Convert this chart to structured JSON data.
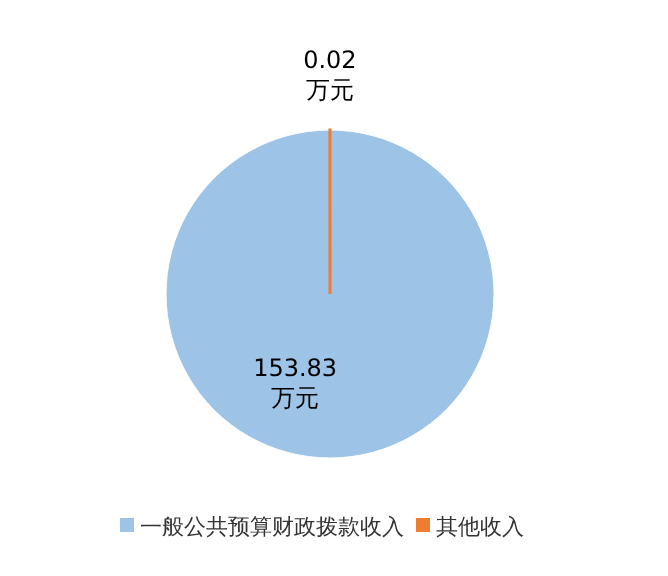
{
  "chart_data": {
    "type": "pie",
    "categories": [
      "一般公共预算财政拨款收入",
      "其他收入"
    ],
    "values": [
      153.83,
      0.02
    ],
    "colors": [
      "#9dc3e6",
      "#ed7d31"
    ],
    "value_labels": [
      "153.83\n万元",
      "0.02\n万元"
    ],
    "legend": "bottom"
  }
}
